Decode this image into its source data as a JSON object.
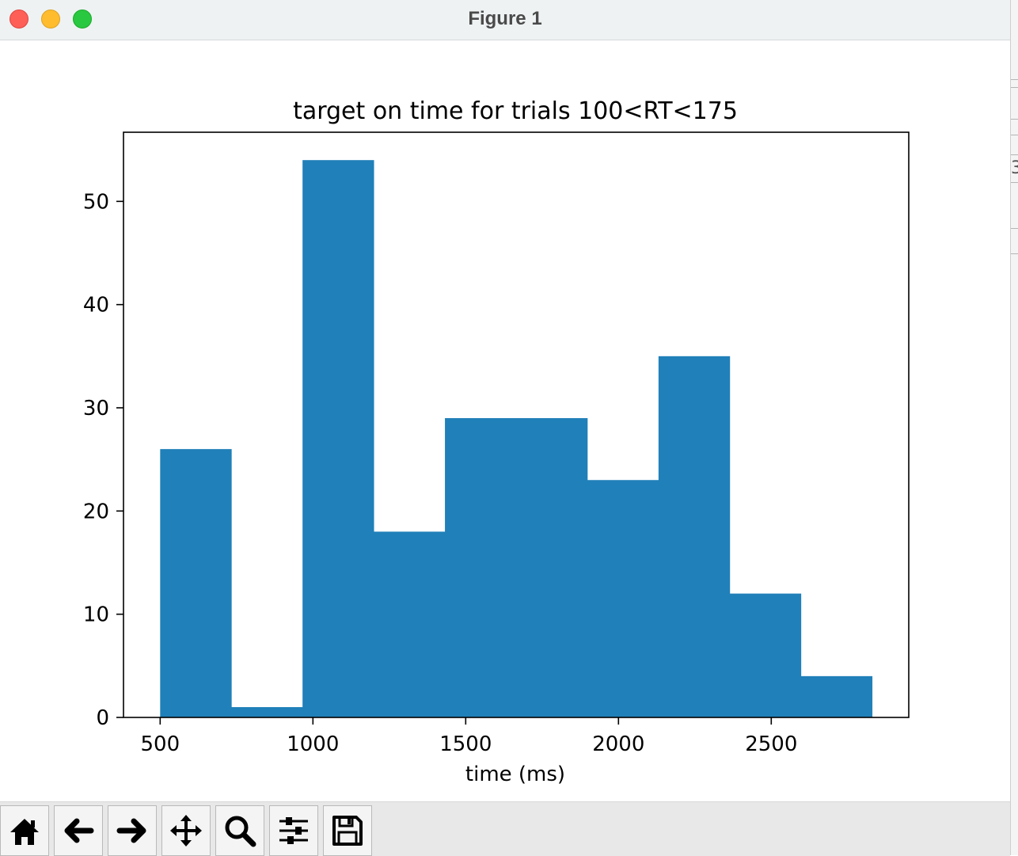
{
  "window": {
    "title": "Figure 1",
    "controls": [
      {
        "name": "close",
        "color": "#fe5f57"
      },
      {
        "name": "minimize",
        "color": "#febc2e"
      },
      {
        "name": "maximize",
        "color": "#28c840"
      }
    ]
  },
  "edge_glyph": "3",
  "toolbar": {
    "buttons": [
      {
        "name": "home-icon"
      },
      {
        "name": "back-arrow-icon"
      },
      {
        "name": "forward-arrow-icon"
      },
      {
        "name": "pan-move-icon"
      },
      {
        "name": "zoom-magnifier-icon"
      },
      {
        "name": "configure-subplots-icon"
      },
      {
        "name": "save-floppy-icon"
      }
    ]
  },
  "chart_data": {
    "type": "bar",
    "title": "target on time for trials 100<RT<175",
    "xlabel": "time (ms)",
    "ylabel": "",
    "bin_edges": [
      500,
      733,
      966,
      1199,
      1432,
      1665,
      1898,
      2131,
      2364,
      2597,
      2830
    ],
    "values": [
      26,
      1,
      54,
      18,
      29,
      29,
      23,
      35,
      12,
      4
    ],
    "xlim": [
      380,
      2950
    ],
    "ylim": [
      0,
      56.7
    ],
    "xticks": [
      500,
      1000,
      1500,
      2000,
      2500
    ],
    "yticks": [
      0,
      10,
      20,
      30,
      40,
      50
    ],
    "bar_color": "#2080b9",
    "grid": false,
    "legend": "none"
  }
}
